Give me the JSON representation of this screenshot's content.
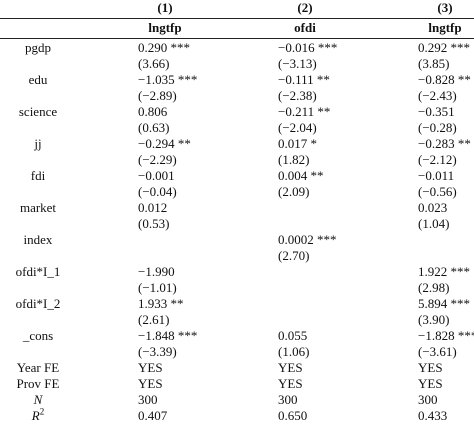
{
  "columns": {
    "numbers": [
      "(1)",
      "(2)",
      "(3)"
    ],
    "names": [
      "lngtfp",
      "ofdi",
      "lngtfp"
    ]
  },
  "rows": [
    {
      "label": "pgdp",
      "c1": "0.290 ***",
      "c2": "−0.016 ***",
      "c3": "0.292 ***"
    },
    {
      "label": "",
      "c1": "(3.66)",
      "c2": "(−3.13)",
      "c3": "(3.85)"
    },
    {
      "label": "edu",
      "c1": "−1.035 ***",
      "c2": "−0.111 **",
      "c3": "−0.828 **"
    },
    {
      "label": "",
      "c1": "(−2.89)",
      "c2": "(−2.38)",
      "c3": "(−2.43)"
    },
    {
      "label": "science",
      "c1": "0.806",
      "c2": "−0.211 **",
      "c3": "−0.351"
    },
    {
      "label": "",
      "c1": "(0.63)",
      "c2": "(−2.04)",
      "c3": "(−0.28)"
    },
    {
      "label": "jj",
      "c1": "−0.294 **",
      "c2": "0.017 *",
      "c3": "−0.283 **"
    },
    {
      "label": "",
      "c1": "(−2.29)",
      "c2": "(1.82)",
      "c3": "(−2.12)"
    },
    {
      "label": "fdi",
      "c1": "−0.001",
      "c2": "0.004 **",
      "c3": "−0.011"
    },
    {
      "label": "",
      "c1": "(−0.04)",
      "c2": "(2.09)",
      "c3": "(−0.56)"
    },
    {
      "label": "market",
      "c1": "0.012",
      "c2": "",
      "c3": "0.023"
    },
    {
      "label": "",
      "c1": "(0.53)",
      "c2": "",
      "c3": "(1.04)"
    },
    {
      "label": "index",
      "c1": "",
      "c2": "0.0002 ***",
      "c3": ""
    },
    {
      "label": "",
      "c1": "",
      "c2": "(2.70)",
      "c3": ""
    },
    {
      "label": "ofdi*I_1",
      "c1": "−1.990",
      "c2": "",
      "c3": "1.922 ***"
    },
    {
      "label": "",
      "c1": "(−1.01)",
      "c2": "",
      "c3": "(2.98)"
    },
    {
      "label": "ofdi*I_2",
      "c1": "1.933 **",
      "c2": "",
      "c3": "5.894 ***"
    },
    {
      "label": "",
      "c1": "(2.61)",
      "c2": "",
      "c3": "(3.90)"
    },
    {
      "label": "_cons",
      "c1": "−1.848 ***",
      "c2": "0.055",
      "c3": "−1.828 ***"
    },
    {
      "label": "",
      "c1": "(−3.39)",
      "c2": "(1.06)",
      "c3": "(−3.61)"
    },
    {
      "label": "Year FE",
      "c1": "YES",
      "c2": "YES",
      "c3": "YES"
    },
    {
      "label": "Prov FE",
      "c1": "YES",
      "c2": "YES",
      "c3": "YES"
    },
    {
      "label": "N",
      "c1": "300",
      "c2": "300",
      "c3": "300"
    }
  ],
  "r2_row": {
    "label_base": "R",
    "label_sup": "2",
    "c1": "0.407",
    "c2": "0.650",
    "c3": "0.433"
  }
}
